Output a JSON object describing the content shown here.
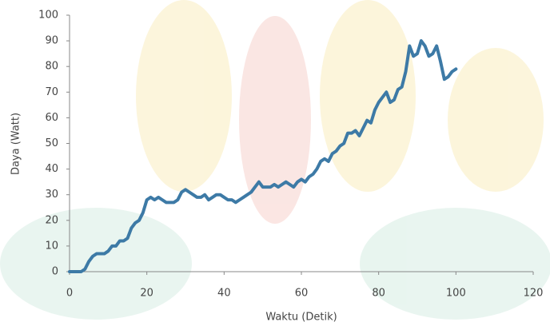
{
  "chart_data": {
    "type": "line",
    "x_label": "Waktu (Detik)",
    "y_label": "Daya (Watt)",
    "x": [
      0,
      3,
      4,
      5,
      6,
      7,
      8,
      9,
      10,
      11,
      12,
      13,
      14,
      15,
      16,
      17,
      18,
      19,
      20,
      21,
      22,
      23,
      24,
      25,
      26,
      27,
      28,
      29,
      30,
      31,
      32,
      33,
      34,
      35,
      36,
      37,
      38,
      39,
      40,
      41,
      42,
      43,
      44,
      45,
      46,
      47,
      48,
      49,
      50,
      51,
      52,
      53,
      54,
      55,
      56,
      57,
      58,
      59,
      60,
      61,
      62,
      63,
      64,
      65,
      66,
      67,
      68,
      69,
      70,
      71,
      72,
      73,
      74,
      75,
      76,
      77,
      78,
      79,
      80,
      81,
      82,
      83,
      84,
      85,
      86,
      87,
      88,
      89,
      90,
      91,
      92,
      93,
      94,
      95,
      96,
      97,
      98,
      99,
      100
    ],
    "series": [
      {
        "color": "#3d7aa6",
        "values": [
          0,
          0,
          1,
          4,
          6,
          7,
          7,
          7,
          8,
          10,
          10,
          12,
          12,
          13,
          17,
          19,
          20,
          23,
          28,
          29,
          28,
          29,
          28,
          27,
          27,
          27,
          28,
          31,
          32,
          31,
          30,
          29,
          29,
          30,
          28,
          29,
          30,
          30,
          29,
          28,
          28,
          27,
          28,
          29,
          30,
          31,
          33,
          35,
          33,
          33,
          33,
          34,
          33,
          34,
          35,
          34,
          33,
          35,
          36,
          35,
          37,
          38,
          40,
          43,
          44,
          43,
          46,
          47,
          49,
          50,
          54,
          54,
          55,
          53,
          56,
          59,
          58,
          63,
          66,
          68,
          70,
          66,
          67,
          71,
          72,
          78,
          88,
          84,
          85,
          90,
          88,
          84,
          85,
          88,
          82,
          75,
          76,
          78,
          79
        ]
      }
    ],
    "xlim": [
      0,
      120
    ],
    "xticks": [
      0,
      20,
      40,
      60,
      80,
      100,
      120
    ],
    "ylim": [
      0,
      100
    ],
    "yticks": [
      0,
      10,
      20,
      30,
      40,
      50,
      60,
      70,
      80,
      90,
      100
    ]
  }
}
